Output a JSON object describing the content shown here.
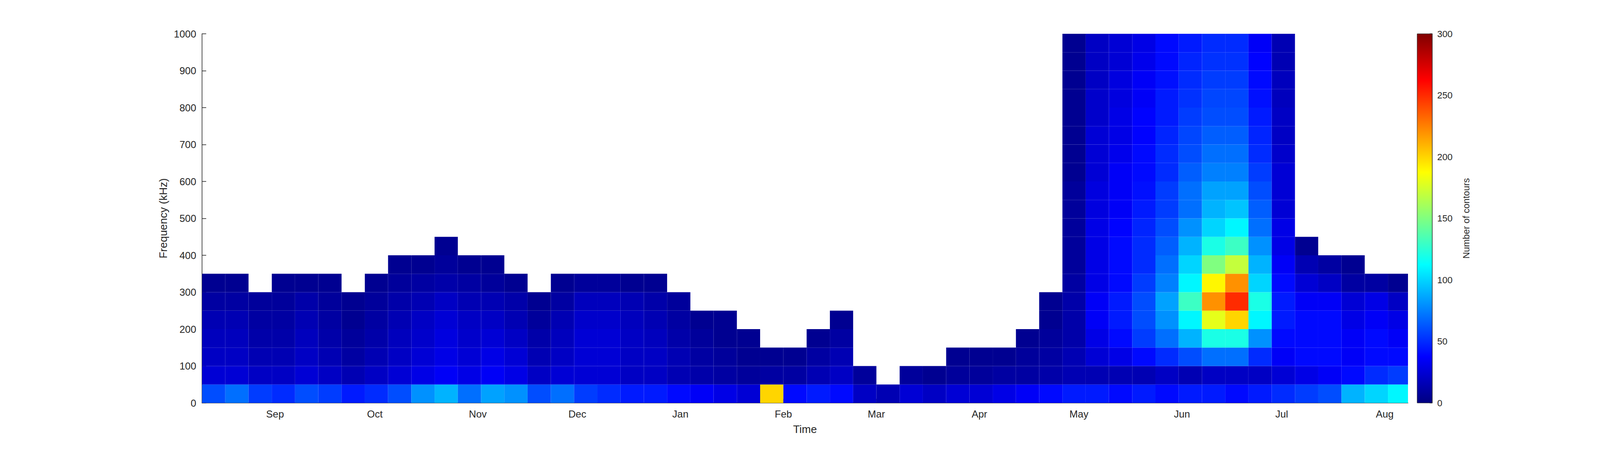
{
  "chart_data": {
    "type": "heatmap",
    "x_label": "Time",
    "y_label": "Frequency (kHz)",
    "x_bins": [
      0,
      1,
      2,
      3,
      4,
      5,
      6,
      7,
      8,
      9,
      10,
      11,
      12,
      13,
      14,
      15,
      16,
      17,
      18,
      19,
      20,
      21,
      22,
      23,
      24,
      25,
      26,
      27,
      28,
      29,
      30,
      31,
      32,
      33,
      34,
      35,
      36,
      37,
      38,
      39,
      40,
      41,
      42,
      43,
      44,
      45,
      46,
      47,
      48,
      49,
      50,
      51,
      52
    ],
    "y_bins": [
      0,
      50,
      100,
      150,
      200,
      250,
      300,
      350,
      400,
      450,
      500,
      550,
      600,
      650,
      700,
      750,
      800,
      850,
      900,
      950,
      1000
    ],
    "counts": [
      [
        60,
        70,
        55,
        50,
        60,
        55,
        45,
        50,
        60,
        80,
        90,
        70,
        85,
        80,
        60,
        70,
        55,
        50,
        45,
        45,
        40,
        35,
        30,
        25,
        200,
        40,
        45,
        40,
        20,
        15,
        25,
        20,
        25,
        25,
        30,
        35,
        40,
        45,
        45,
        40,
        45,
        40,
        45,
        45,
        40,
        45,
        50,
        55,
        60,
        90,
        100,
        110
      ],
      [
        25,
        25,
        20,
        20,
        25,
        20,
        15,
        20,
        25,
        30,
        35,
        30,
        35,
        30,
        20,
        25,
        25,
        25,
        20,
        20,
        15,
        12,
        10,
        8,
        10,
        10,
        15,
        20,
        8,
        null,
        8,
        5,
        8,
        8,
        10,
        10,
        12,
        15,
        15,
        15,
        15,
        20,
        15,
        20,
        20,
        20,
        25,
        30,
        35,
        40,
        50,
        55
      ],
      [
        20,
        20,
        15,
        15,
        20,
        15,
        10,
        15,
        20,
        25,
        30,
        25,
        30,
        25,
        15,
        20,
        25,
        25,
        20,
        20,
        15,
        10,
        8,
        5,
        5,
        5,
        10,
        15,
        null,
        null,
        null,
        null,
        5,
        5,
        5,
        8,
        10,
        15,
        25,
        30,
        40,
        50,
        60,
        70,
        70,
        50,
        35,
        40,
        40,
        35,
        40,
        40
      ],
      [
        18,
        18,
        12,
        12,
        18,
        12,
        8,
        12,
        18,
        22,
        28,
        22,
        25,
        20,
        12,
        18,
        25,
        25,
        20,
        18,
        12,
        8,
        5,
        5,
        null,
        null,
        5,
        10,
        null,
        null,
        null,
        null,
        null,
        null,
        null,
        5,
        8,
        12,
        30,
        40,
        55,
        70,
        90,
        120,
        120,
        80,
        40,
        40,
        40,
        35,
        40,
        35
      ],
      [
        15,
        15,
        10,
        10,
        15,
        10,
        5,
        10,
        15,
        20,
        25,
        20,
        20,
        15,
        8,
        15,
        22,
        22,
        18,
        15,
        10,
        5,
        5,
        null,
        null,
        null,
        null,
        5,
        null,
        null,
        null,
        null,
        null,
        null,
        null,
        null,
        5,
        12,
        35,
        45,
        60,
        80,
        110,
        180,
        200,
        110,
        45,
        40,
        40,
        30,
        35,
        30
      ],
      [
        10,
        10,
        8,
        8,
        12,
        8,
        5,
        8,
        12,
        15,
        20,
        15,
        15,
        12,
        5,
        10,
        18,
        18,
        15,
        12,
        8,
        null,
        null,
        null,
        null,
        null,
        null,
        null,
        null,
        null,
        null,
        null,
        null,
        null,
        null,
        null,
        5,
        12,
        35,
        45,
        60,
        85,
        130,
        220,
        250,
        120,
        45,
        35,
        35,
        25,
        30,
        20
      ],
      [
        5,
        5,
        null,
        5,
        5,
        5,
        null,
        5,
        8,
        10,
        12,
        10,
        8,
        5,
        null,
        5,
        8,
        8,
        5,
        5,
        null,
        null,
        null,
        null,
        null,
        null,
        null,
        null,
        null,
        null,
        null,
        null,
        null,
        null,
        null,
        null,
        null,
        10,
        30,
        40,
        55,
        75,
        110,
        190,
        220,
        100,
        40,
        25,
        20,
        10,
        10,
        5
      ],
      [
        null,
        null,
        null,
        null,
        null,
        null,
        null,
        null,
        5,
        5,
        8,
        5,
        5,
        null,
        null,
        null,
        null,
        null,
        null,
        null,
        null,
        null,
        null,
        null,
        null,
        null,
        null,
        null,
        null,
        null,
        null,
        null,
        null,
        null,
        null,
        null,
        null,
        8,
        30,
        40,
        50,
        70,
        100,
        150,
        170,
        90,
        35,
        15,
        10,
        5,
        null,
        null
      ],
      [
        null,
        null,
        null,
        null,
        null,
        null,
        null,
        null,
        null,
        null,
        5,
        null,
        null,
        null,
        null,
        null,
        null,
        null,
        null,
        null,
        null,
        null,
        null,
        null,
        null,
        null,
        null,
        null,
        null,
        null,
        null,
        null,
        null,
        null,
        null,
        null,
        null,
        8,
        30,
        40,
        50,
        65,
        90,
        120,
        130,
        80,
        30,
        5,
        null,
        null,
        null,
        null
      ],
      [
        null,
        null,
        null,
        null,
        null,
        null,
        null,
        null,
        null,
        null,
        null,
        null,
        null,
        null,
        null,
        null,
        null,
        null,
        null,
        null,
        null,
        null,
        null,
        null,
        null,
        null,
        null,
        null,
        null,
        null,
        null,
        null,
        null,
        null,
        null,
        null,
        null,
        8,
        30,
        38,
        48,
        60,
        80,
        100,
        110,
        70,
        30,
        null,
        null,
        null,
        null,
        null
      ],
      [
        null,
        null,
        null,
        null,
        null,
        null,
        null,
        null,
        null,
        null,
        null,
        null,
        null,
        null,
        null,
        null,
        null,
        null,
        null,
        null,
        null,
        null,
        null,
        null,
        null,
        null,
        null,
        null,
        null,
        null,
        null,
        null,
        null,
        null,
        null,
        null,
        null,
        8,
        28,
        35,
        45,
        55,
        70,
        90,
        95,
        65,
        25,
        null,
        null,
        null,
        null,
        null
      ],
      [
        null,
        null,
        null,
        null,
        null,
        null,
        null,
        null,
        null,
        null,
        null,
        null,
        null,
        null,
        null,
        null,
        null,
        null,
        null,
        null,
        null,
        null,
        null,
        null,
        null,
        null,
        null,
        null,
        null,
        null,
        null,
        null,
        null,
        null,
        null,
        null,
        null,
        8,
        28,
        35,
        42,
        55,
        70,
        85,
        85,
        60,
        25,
        null,
        null,
        null,
        null,
        null
      ],
      [
        null,
        null,
        null,
        null,
        null,
        null,
        null,
        null,
        null,
        null,
        null,
        null,
        null,
        null,
        null,
        null,
        null,
        null,
        null,
        null,
        null,
        null,
        null,
        null,
        null,
        null,
        null,
        null,
        null,
        null,
        null,
        null,
        null,
        null,
        null,
        null,
        null,
        5,
        25,
        35,
        40,
        50,
        65,
        75,
        75,
        55,
        25,
        null,
        null,
        null,
        null,
        null
      ],
      [
        null,
        null,
        null,
        null,
        null,
        null,
        null,
        null,
        null,
        null,
        null,
        null,
        null,
        null,
        null,
        null,
        null,
        null,
        null,
        null,
        null,
        null,
        null,
        null,
        null,
        null,
        null,
        null,
        null,
        null,
        null,
        null,
        null,
        null,
        null,
        null,
        null,
        5,
        25,
        32,
        40,
        50,
        60,
        70,
        70,
        50,
        22,
        null,
        null,
        null,
        null,
        null
      ],
      [
        null,
        null,
        null,
        null,
        null,
        null,
        null,
        null,
        null,
        null,
        null,
        null,
        null,
        null,
        null,
        null,
        null,
        null,
        null,
        null,
        null,
        null,
        null,
        null,
        null,
        null,
        null,
        null,
        null,
        null,
        null,
        null,
        null,
        null,
        null,
        null,
        null,
        5,
        25,
        30,
        38,
        48,
        58,
        65,
        65,
        48,
        20,
        null,
        null,
        null,
        null,
        null
      ],
      [
        null,
        null,
        null,
        null,
        null,
        null,
        null,
        null,
        null,
        null,
        null,
        null,
        null,
        null,
        null,
        null,
        null,
        null,
        null,
        null,
        null,
        null,
        null,
        null,
        null,
        null,
        null,
        null,
        null,
        null,
        null,
        null,
        null,
        null,
        null,
        null,
        null,
        5,
        22,
        30,
        38,
        45,
        55,
        60,
        60,
        45,
        20,
        null,
        null,
        null,
        null,
        null
      ],
      [
        null,
        null,
        null,
        null,
        null,
        null,
        null,
        null,
        null,
        null,
        null,
        null,
        null,
        null,
        null,
        null,
        null,
        null,
        null,
        null,
        null,
        null,
        null,
        null,
        null,
        null,
        null,
        null,
        null,
        null,
        null,
        null,
        null,
        null,
        null,
        null,
        null,
        5,
        22,
        28,
        35,
        45,
        52,
        58,
        58,
        42,
        18,
        null,
        null,
        null,
        null,
        null
      ],
      [
        null,
        null,
        null,
        null,
        null,
        null,
        null,
        null,
        null,
        null,
        null,
        null,
        null,
        null,
        null,
        null,
        null,
        null,
        null,
        null,
        null,
        null,
        null,
        null,
        null,
        null,
        null,
        null,
        null,
        null,
        null,
        null,
        null,
        null,
        null,
        null,
        null,
        5,
        20,
        28,
        35,
        42,
        50,
        55,
        55,
        40,
        18,
        null,
        null,
        null,
        null,
        null
      ],
      [
        null,
        null,
        null,
        null,
        null,
        null,
        null,
        null,
        null,
        null,
        null,
        null,
        null,
        null,
        null,
        null,
        null,
        null,
        null,
        null,
        null,
        null,
        null,
        null,
        null,
        null,
        null,
        null,
        null,
        null,
        null,
        null,
        null,
        null,
        null,
        null,
        null,
        5,
        20,
        25,
        32,
        40,
        48,
        52,
        52,
        38,
        15,
        null,
        null,
        null,
        null,
        null
      ],
      [
        null,
        null,
        null,
        null,
        null,
        null,
        null,
        null,
        null,
        null,
        null,
        null,
        null,
        null,
        null,
        null,
        null,
        null,
        null,
        null,
        null,
        null,
        null,
        null,
        null,
        null,
        null,
        null,
        null,
        null,
        null,
        null,
        null,
        null,
        null,
        null,
        null,
        5,
        20,
        25,
        30,
        40,
        45,
        50,
        50,
        35,
        15,
        null,
        null,
        null,
        null,
        null
      ]
    ],
    "xlim": [
      0,
      51.86
    ],
    "xticks": [
      {
        "value": 3.14,
        "label": "Sep"
      },
      {
        "value": 7.43,
        "label": "Oct"
      },
      {
        "value": 11.86,
        "label": "Nov"
      },
      {
        "value": 16.14,
        "label": "Dec"
      },
      {
        "value": 20.57,
        "label": "Jan"
      },
      {
        "value": 25,
        "label": "Feb"
      },
      {
        "value": 29,
        "label": "Mar"
      },
      {
        "value": 33.43,
        "label": "Apr"
      },
      {
        "value": 37.71,
        "label": "May"
      },
      {
        "value": 42.14,
        "label": "Jun"
      },
      {
        "value": 46.43,
        "label": "Jul"
      },
      {
        "value": 50.86,
        "label": "Aug"
      }
    ],
    "ylim": [
      0,
      1000
    ],
    "yticks": [
      0,
      100,
      200,
      300,
      400,
      500,
      600,
      700,
      800,
      900,
      1000
    ],
    "grid": false,
    "colorbar": {
      "label": "Number of contours",
      "range": [
        0,
        300
      ],
      "ticks": [
        0,
        50,
        100,
        150,
        200,
        250,
        300
      ]
    }
  }
}
